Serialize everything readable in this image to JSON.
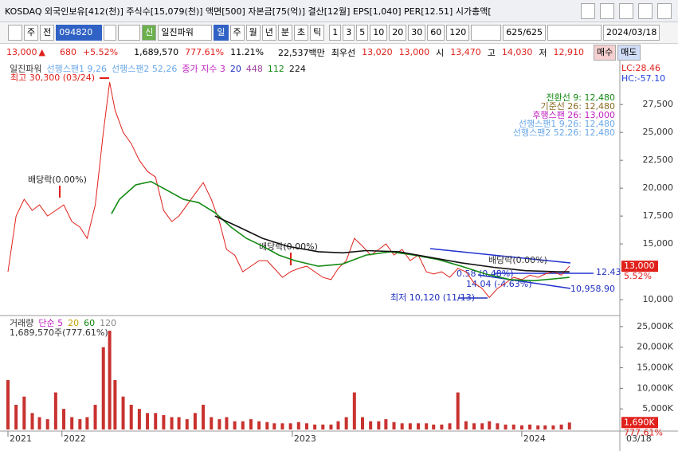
{
  "title_bar": {
    "text": "KOSDAQ 외국인보유[412(천)] 주식수[15,079(천)] 액면[500] 자본금[75(억)] 결산[12월] EPS[1,040] PER[12.51] 시가총액["
  },
  "toolbar": {
    "market": "주",
    "prev": "전",
    "code": "094820",
    "badge": "신",
    "name": "일진파워",
    "periods": [
      "일",
      "주",
      "월",
      "년",
      "분",
      "초",
      "틱"
    ],
    "intervals": [
      "1",
      "3",
      "5",
      "10",
      "20",
      "30",
      "60",
      "120"
    ],
    "count": "625/625",
    "date": "2024/03/18"
  },
  "quote": {
    "price": "13,000",
    "arrow": "▲",
    "change": "680",
    "pct": "+5.52%",
    "volume": "1,689,570",
    "vol_ratio": "777.61%",
    "turnover": "11.21%",
    "amount": "22,537백만",
    "best_label": "최우선",
    "ask": "13,020",
    "bid": "13,000",
    "open_label": "시",
    "open": "13,470",
    "high_label": "고",
    "high": "14,030",
    "low_label": "저",
    "low": "12,910",
    "buy": "매수",
    "sell": "매도"
  },
  "chart_data": [
    {
      "type": "line",
      "legend_extra": [
        "일진파워",
        "선행스팬1 9,26",
        "선행스팬2 52,26",
        "종가 지수 3",
        "20",
        "448"
      ],
      "lc": "LC:28.46",
      "hc": "HC:-57.10",
      "info": [
        "전환선 9: 12,480",
        "기준선 26: 12,480",
        "후행스팬 26: 13,000",
        "선행스팬1 9,26: 12,480",
        "선행스팬2 52,26: 12,480"
      ],
      "annotations": [
        "최고 30,300 (03/24)",
        "배당락(0.00%)",
        "배당락(0.00%)",
        "배당락(0.00%)",
        "최저 10,120 (11/13)",
        "0.58 (0.48%)",
        "14.04 (-4.63%)",
        "12.43",
        "10,958.90"
      ],
      "last_label": "13,000",
      "last_pct": "5.52%",
      "xlim": [
        0,
        680
      ],
      "ylim": [
        8650,
        31300
      ],
      "yticks": [
        {
          "value": 10000,
          "label": "10,000"
        },
        {
          "value": 15000,
          "label": "15,000"
        },
        {
          "value": 17500,
          "label": "17,500"
        },
        {
          "value": 20000,
          "label": "20,000"
        },
        {
          "value": 22500,
          "label": "22,500"
        },
        {
          "value": 25000,
          "label": "25,000"
        },
        {
          "value": 27500,
          "label": "27,500"
        }
      ],
      "series": [
        {
          "name": "일진파워 종가",
          "color": "#e0201b",
          "x": [
            0,
            9,
            18,
            27,
            35,
            44,
            53,
            62,
            71,
            80,
            88,
            97,
            106,
            113,
            119,
            128,
            137,
            146,
            155,
            164,
            173,
            182,
            190,
            199,
            208,
            217,
            226,
            235,
            243,
            252,
            261,
            270,
            279,
            288,
            296,
            305,
            314,
            323,
            332,
            341,
            350,
            359,
            367,
            376,
            385,
            394,
            403,
            412,
            420,
            429,
            438,
            447,
            456,
            465,
            473,
            482,
            491,
            500,
            509,
            518,
            527,
            535,
            544,
            553,
            562,
            571,
            580,
            589,
            597,
            606,
            615,
            624
          ],
          "values": [
            12500,
            17500,
            19000,
            18000,
            18500,
            17500,
            18000,
            18500,
            17000,
            16500,
            15500,
            18500,
            25000,
            29500,
            27000,
            25000,
            24000,
            22500,
            21500,
            21000,
            18000,
            17000,
            17500,
            18500,
            19500,
            20500,
            19000,
            17000,
            14500,
            14000,
            12500,
            13000,
            13500,
            13500,
            12800,
            12000,
            12500,
            12800,
            13000,
            12500,
            12000,
            11800,
            12800,
            13500,
            15500,
            14800,
            14000,
            14500,
            15000,
            14000,
            14500,
            13500,
            14000,
            12500,
            12300,
            12500,
            12000,
            12800,
            12500,
            11500,
            11000,
            10200,
            11000,
            11500,
            12000,
            11800,
            12200,
            12000,
            12300,
            12500,
            12200,
            13000
          ]
        },
        {
          "name": "112",
          "color": "#138a13",
          "x": [
            115,
            124,
            142,
            159,
            177,
            195,
            212,
            230,
            248,
            265,
            283,
            301,
            319,
            345,
            372,
            398,
            425,
            451,
            478,
            504,
            531,
            558,
            584,
            611,
            624
          ],
          "values": [
            17700,
            19000,
            20300,
            20600,
            19800,
            19000,
            18700,
            17800,
            16500,
            15500,
            14800,
            14000,
            13500,
            13000,
            13200,
            14000,
            14300,
            14000,
            13600,
            13000,
            12300,
            11800,
            11700,
            11900,
            12000
          ]
        },
        {
          "name": "224",
          "color": "#111111",
          "x": [
            230,
            257,
            283,
            310,
            345,
            372,
            398,
            434,
            469,
            504,
            540,
            575,
            611,
            624
          ],
          "values": [
            17500,
            16500,
            15500,
            14800,
            14300,
            14200,
            14400,
            14300,
            13800,
            13300,
            12900,
            12600,
            12500,
            12500
          ]
        }
      ]
    },
    {
      "type": "bar",
      "legend_extra": [
        "거래량",
        "단순 5",
        "20",
        "60",
        "120"
      ],
      "info": "1,689,570주(777.61%)",
      "last_label": "1,690K",
      "last_pct": "777.61%",
      "x_end_label": "03/18",
      "xlim": [
        0,
        680
      ],
      "ylim": [
        0,
        27500
      ],
      "xticks": [
        {
          "value": 0,
          "label": "2021"
        },
        {
          "value": 60,
          "label": "2022"
        },
        {
          "value": 316,
          "label": "2023"
        },
        {
          "value": 571,
          "label": "2024"
        }
      ],
      "yticks": [
        {
          "value": 5000,
          "label": "5,000K"
        },
        {
          "value": 10000,
          "label": "10,000K"
        },
        {
          "value": 15000,
          "label": "15,000K"
        },
        {
          "value": 20000,
          "label": "20,000K"
        },
        {
          "value": 25000,
          "label": "25,000K"
        }
      ],
      "series": [
        {
          "name": "거래량",
          "color": "#c8322f",
          "x": [
            0,
            9,
            18,
            27,
            35,
            44,
            53,
            62,
            71,
            80,
            88,
            97,
            106,
            113,
            119,
            128,
            137,
            146,
            155,
            164,
            173,
            182,
            190,
            199,
            208,
            217,
            226,
            235,
            243,
            252,
            261,
            270,
            279,
            288,
            296,
            305,
            314,
            323,
            332,
            341,
            350,
            359,
            367,
            376,
            385,
            394,
            403,
            412,
            420,
            429,
            438,
            447,
            456,
            465,
            473,
            482,
            491,
            500,
            509,
            518,
            527,
            535,
            544,
            553,
            562,
            571,
            580,
            589,
            597,
            606,
            615,
            624
          ],
          "values": [
            12000,
            6000,
            8000,
            4000,
            3000,
            2500,
            9000,
            5000,
            3000,
            2500,
            3000,
            6000,
            20000,
            24000,
            12000,
            8000,
            6000,
            5000,
            4000,
            4000,
            3500,
            3000,
            3000,
            2500,
            4000,
            6000,
            3000,
            2500,
            3000,
            2000,
            2000,
            2500,
            2000,
            1800,
            1500,
            1500,
            1500,
            1800,
            1500,
            1200,
            1200,
            1200,
            2000,
            3000,
            9000,
            3000,
            2000,
            2000,
            2500,
            1800,
            1500,
            1500,
            1500,
            1500,
            1200,
            1200,
            1500,
            9000,
            2000,
            1500,
            1500,
            2000,
            1500,
            1200,
            1200,
            1000,
            1200,
            1000,
            1000,
            1000,
            1200,
            1689.57
          ]
        }
      ]
    }
  ]
}
